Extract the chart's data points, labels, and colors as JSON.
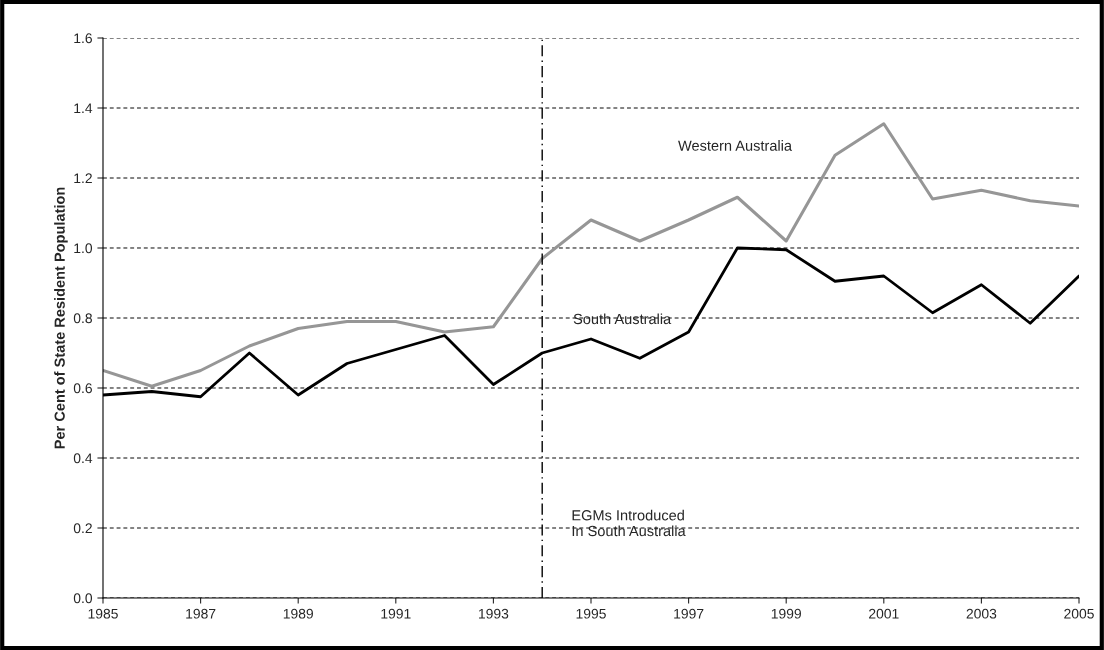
{
  "chart_data": {
    "type": "line",
    "ylabel": "Per Cent of State Resident Population",
    "x": [
      1985,
      1986,
      1987,
      1988,
      1989,
      1990,
      1991,
      1992,
      1993,
      1994,
      1995,
      1996,
      1997,
      1998,
      1999,
      2000,
      2001,
      2002,
      2003,
      2004,
      2005
    ],
    "series": [
      {
        "name": "Western Australia",
        "color": "#969696",
        "values": [
          0.65,
          0.605,
          0.65,
          0.72,
          0.77,
          0.79,
          0.79,
          0.76,
          0.775,
          0.97,
          1.08,
          1.02,
          1.08,
          1.145,
          1.02,
          1.265,
          1.355,
          1.14,
          1.165,
          1.135,
          1.12
        ]
      },
      {
        "name": "South Australia",
        "color": "#000000",
        "values": [
          0.58,
          0.59,
          0.575,
          0.7,
          0.58,
          0.67,
          0.71,
          0.75,
          0.61,
          0.7,
          0.74,
          0.685,
          0.76,
          1.0,
          0.995,
          0.905,
          0.92,
          0.815,
          0.895,
          0.785,
          0.92
        ]
      }
    ],
    "xlim": [
      1985,
      2005
    ],
    "xticks": [
      1985,
      1987,
      1989,
      1991,
      1993,
      1995,
      1997,
      1999,
      2001,
      2003,
      2005
    ],
    "ylim": [
      0,
      1.6
    ],
    "yticks": [
      {
        "value": 0,
        "label": "0.0"
      },
      {
        "value": 0.2,
        "label": "0.2"
      },
      {
        "value": 0.4,
        "label": "0.4"
      },
      {
        "value": 0.6,
        "label": "0.6"
      },
      {
        "value": 0.8,
        "label": "0.8"
      },
      {
        "value": 1.0,
        "label": "1.0"
      },
      {
        "value": 1.2,
        "label": "1.2"
      },
      {
        "value": 1.4,
        "label": "1.4"
      },
      {
        "value": 1.6,
        "label": "1.6"
      }
    ],
    "grid": "y",
    "legend": false,
    "marker": "none",
    "line_style": "solid",
    "ref_lines": [
      {
        "axis": "x",
        "value": 1994,
        "label": "EGMs Introduced\nIn South Australia",
        "color": "#000000",
        "line_style": "dashed"
      }
    ]
  }
}
